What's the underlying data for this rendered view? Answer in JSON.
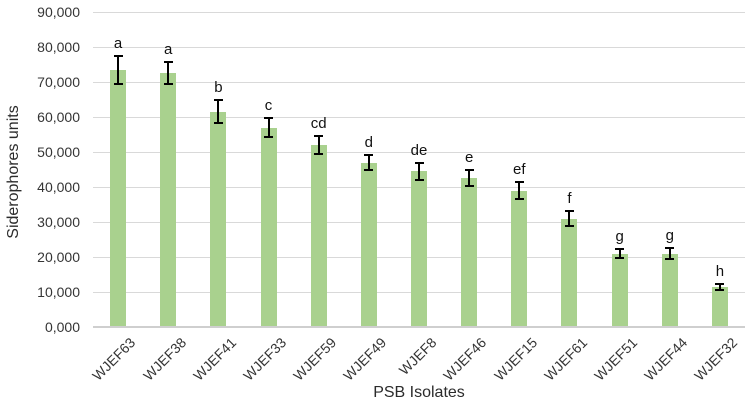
{
  "chart_data": {
    "type": "bar",
    "title": "",
    "xlabel": "PSB Isolates",
    "ylabel": "Siderophores units",
    "categories": [
      "WJEF63",
      "WJEF38",
      "WJEF41",
      "WJEF33",
      "WJEF59",
      "WJEF49",
      "WJEF8",
      "WJEF46",
      "WJEF15",
      "WJEF61",
      "WJEF51",
      "WJEF44",
      "WJEF32"
    ],
    "values": [
      73500,
      72500,
      61500,
      57000,
      52000,
      47000,
      44500,
      42500,
      39000,
      31000,
      21000,
      21000,
      11500
    ],
    "error_bars": [
      4000,
      3200,
      3300,
      2800,
      2500,
      2200,
      2500,
      2300,
      2300,
      2200,
      1200,
      1500,
      800
    ],
    "significance_letters": [
      "a",
      "a",
      "b",
      "c",
      "cd",
      "d",
      "de",
      "e",
      "ef",
      "f",
      "g",
      "g",
      "h"
    ],
    "ylim": [
      0,
      90000
    ],
    "ytick_step": 10000,
    "ytick_labels": [
      "0,000",
      "10,000",
      "20,000",
      "30,000",
      "40,000",
      "50,000",
      "60,000",
      "70,000",
      "80,000",
      "90,000"
    ],
    "grid": "horizontal",
    "legend": "none",
    "colors": {
      "bar_fill": "#a9d18e",
      "gridline": "#d9d9d9",
      "axis_line": "#cfcfcf",
      "error_bar": "#000000",
      "tick_text": "#353535",
      "title_text": "#2b2b2b"
    }
  }
}
